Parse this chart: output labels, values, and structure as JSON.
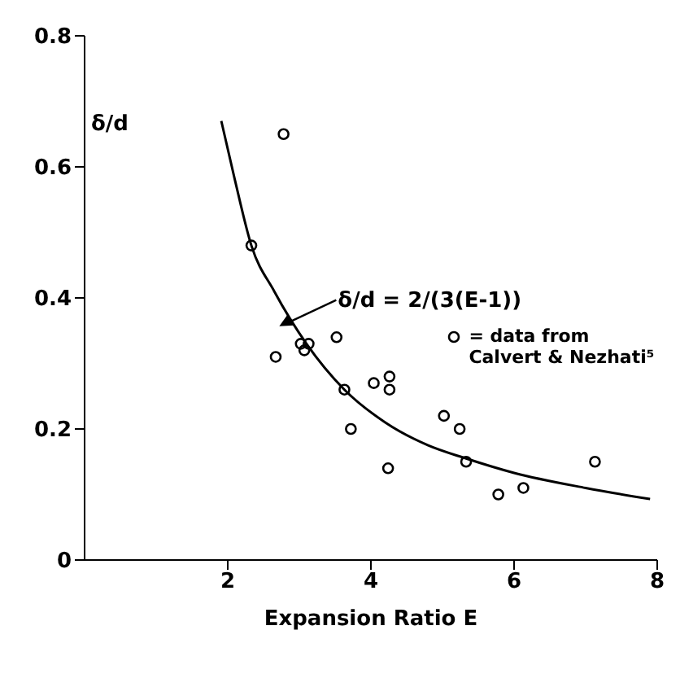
{
  "chart_data": {
    "type": "scatter",
    "xlabel": "Expansion Ratio E",
    "ylabel": "δ/d",
    "xlim": [
      0,
      8
    ],
    "xticks": [
      2,
      4,
      6,
      8
    ],
    "ylim": [
      0,
      0.8
    ],
    "yticks": [
      0,
      0.2,
      0.4,
      0.6,
      0.8
    ],
    "legend": "right",
    "marker": "circle",
    "annotations": [
      {
        "text": "δ/d = 2/(3(E-1))",
        "x": 2.72,
        "y": 0.39
      }
    ],
    "series": [
      {
        "name": "= data from Calvert & Nezhati⁵",
        "color": "#000000",
        "x": [
          2.33,
          2.78,
          2.67,
          3.02,
          3.07,
          3.13,
          3.52,
          3.63,
          3.72,
          4.04,
          4.26,
          4.26,
          4.24,
          5.02,
          5.24,
          5.33,
          5.78,
          6.13,
          7.13
        ],
        "values": [
          0.48,
          0.65,
          0.31,
          0.33,
          0.32,
          0.33,
          0.34,
          0.26,
          0.2,
          0.27,
          0.28,
          0.26,
          0.14,
          0.22,
          0.2,
          0.15,
          0.1,
          0.11,
          0.15
        ]
      },
      {
        "color": "#000000",
        "type": "line",
        "marker": "none",
        "x": [
          1.91,
          2.1,
          2.33,
          2.65,
          3.1,
          3.63,
          4.2,
          4.8,
          5.33,
          6,
          7,
          7.9
        ],
        "values": [
          0.67,
          0.58,
          0.48,
          0.41,
          0.33,
          0.26,
          0.21,
          0.175,
          0.155,
          0.133,
          0.11,
          0.093
        ]
      }
    ]
  }
}
